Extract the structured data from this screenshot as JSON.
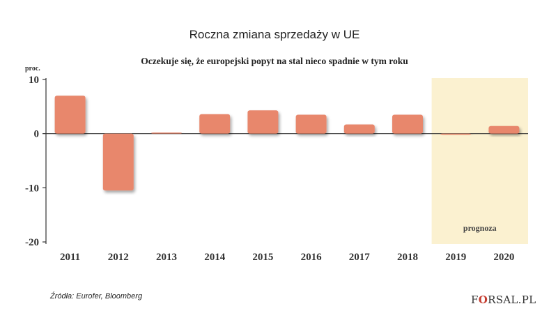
{
  "title": "Roczna zmiana sprzedaży w UE",
  "subtitle": "Oczekuje się, że europejski popyt na stal nieco spadnie w tym roku",
  "unit_label": "proc.",
  "source": "Źródła: Eurofer, Bloomberg",
  "brand": {
    "pre": "F",
    "mark": "O",
    "post": "RSAL.PL"
  },
  "colors": {
    "bar": "#e8876c",
    "forecast_bg": "#fbf1d0",
    "axis": "#333333",
    "text": "#333333"
  },
  "chart_data": {
    "type": "bar",
    "categories": [
      "2011",
      "2012",
      "2013",
      "2014",
      "2015",
      "2016",
      "2017",
      "2018",
      "2019",
      "2020"
    ],
    "values": [
      7,
      -10.5,
      0.2,
      3.6,
      4.3,
      3.5,
      1.7,
      3.5,
      -0.2,
      1.4
    ],
    "ylim": [
      -20,
      10
    ],
    "yticks": [
      10,
      0,
      -10,
      -20
    ],
    "ylabel": "proc.",
    "forecast": {
      "label": "prognoza",
      "categories": [
        "2019",
        "2020"
      ]
    },
    "grid": false
  }
}
